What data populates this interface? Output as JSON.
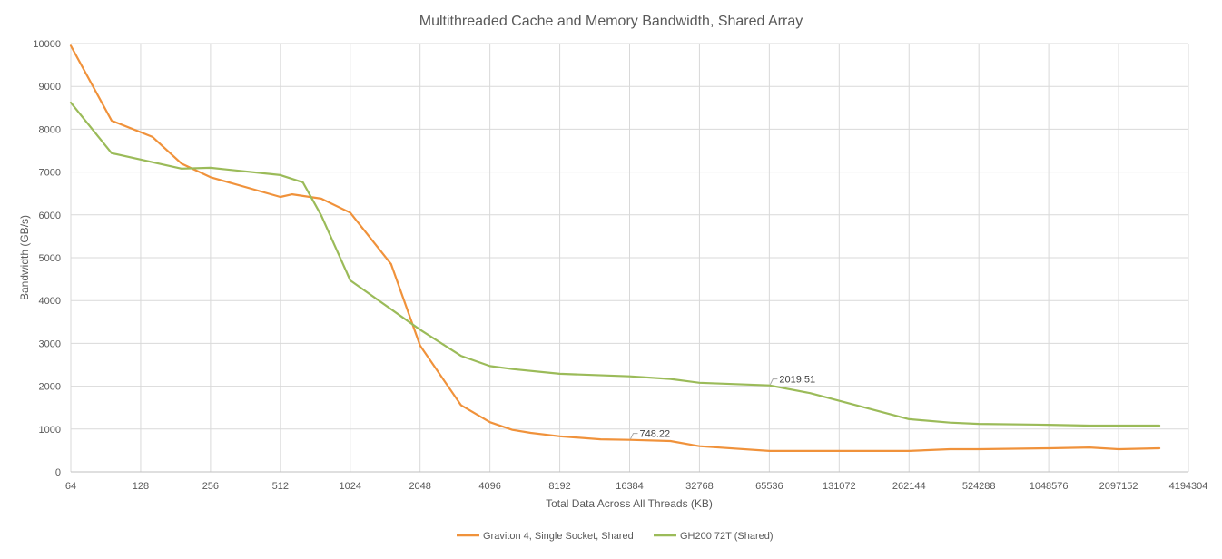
{
  "chart_data": {
    "type": "line",
    "title": "Multithreaded Cache and Memory Bandwidth, Shared Array",
    "xlabel": "Total Data Across All Threads (KB)",
    "ylabel": "Bandwidth (GB/s)",
    "x_scale": "log2",
    "xlim": [
      64,
      4194304
    ],
    "ylim": [
      0,
      10000
    ],
    "x_ticks": [
      64,
      128,
      256,
      512,
      1024,
      2048,
      4096,
      8192,
      16384,
      32768,
      65536,
      131072,
      262144,
      524288,
      1048576,
      2097152,
      4194304
    ],
    "x_tick_labels": [
      "64",
      "128",
      "256",
      "512",
      "1024",
      "2048",
      "4096",
      "8192",
      "16384",
      "32768",
      "65536",
      "131072",
      "262144",
      "524288",
      "1048576",
      "2097152",
      "4194304"
    ],
    "y_ticks": [
      0,
      1000,
      2000,
      3000,
      4000,
      5000,
      6000,
      7000,
      8000,
      9000,
      10000
    ],
    "y_tick_labels": [
      "0",
      "1000",
      "2000",
      "3000",
      "4000",
      "5000",
      "6000",
      "7000",
      "8000",
      "9000",
      "10000"
    ],
    "grid": true,
    "legend_position": "bottom",
    "series": [
      {
        "name": "Graviton 4, Single Socket, Shared",
        "color": "#f0923b",
        "x": [
          64,
          96,
          144,
          192,
          256,
          512,
          576,
          768,
          1024,
          1536,
          2048,
          3072,
          4096,
          5120,
          6144,
          8192,
          12288,
          16384,
          24576,
          32768,
          65536,
          131072,
          262144,
          393216,
          524288,
          1048576,
          1572864,
          2097152,
          3145728
        ],
        "y": [
          9950,
          8200,
          7820,
          7200,
          6880,
          6420,
          6480,
          6380,
          6050,
          4850,
          2950,
          1560,
          1160,
          980,
          910,
          830,
          760,
          748.22,
          720,
          600,
          490,
          490,
          490,
          530,
          530,
          550,
          570,
          530,
          550
        ]
      },
      {
        "name": "GH200 72T (Shared)",
        "color": "#9bbb59",
        "x": [
          64,
          96,
          192,
          256,
          512,
          640,
          768,
          1024,
          2048,
          3072,
          4096,
          5120,
          8192,
          16384,
          24576,
          32768,
          65536,
          98304,
          262144,
          393216,
          524288,
          1048576,
          1572864,
          3145728
        ],
        "y": [
          8620,
          7440,
          7080,
          7100,
          6930,
          6760,
          5990,
          4470,
          3320,
          2710,
          2470,
          2400,
          2290,
          2230,
          2170,
          2080,
          2019.51,
          1840,
          1230,
          1150,
          1120,
          1100,
          1080,
          1080
        ]
      }
    ],
    "annotations": [
      {
        "series": 0,
        "x": 16384,
        "y": 748.22,
        "text": "748.22"
      },
      {
        "series": 1,
        "x": 65536,
        "y": 2019.51,
        "text": "2019.51"
      }
    ]
  }
}
